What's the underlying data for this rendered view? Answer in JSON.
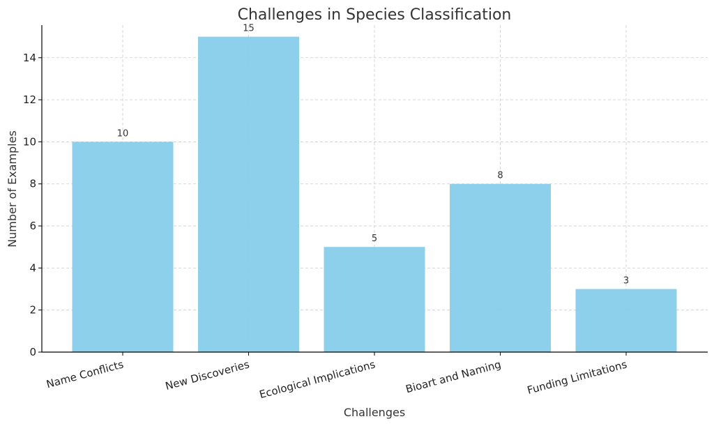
{
  "chart_data": {
    "type": "bar",
    "title": "Challenges in Species Classification",
    "xlabel": "Challenges",
    "ylabel": "Number of Examples",
    "categories": [
      "Name Conflicts",
      "New Discoveries",
      "Ecological Implications",
      "Bioart and Naming",
      "Funding Limitations"
    ],
    "values": [
      10,
      15,
      5,
      8,
      3
    ],
    "data_labels": [
      "10",
      "15",
      "5",
      "8",
      "3"
    ],
    "ylim": [
      0,
      15.75
    ],
    "yticks": [
      0,
      2,
      4,
      6,
      8,
      10,
      12,
      14
    ],
    "ytick_labels": [
      "0",
      "2",
      "4",
      "6",
      "8",
      "10",
      "12",
      "14"
    ],
    "grid": true,
    "legend": "none",
    "colors": {
      "bar": "#87ceeb",
      "grid": "#cccccc",
      "axis": "#000000"
    }
  }
}
